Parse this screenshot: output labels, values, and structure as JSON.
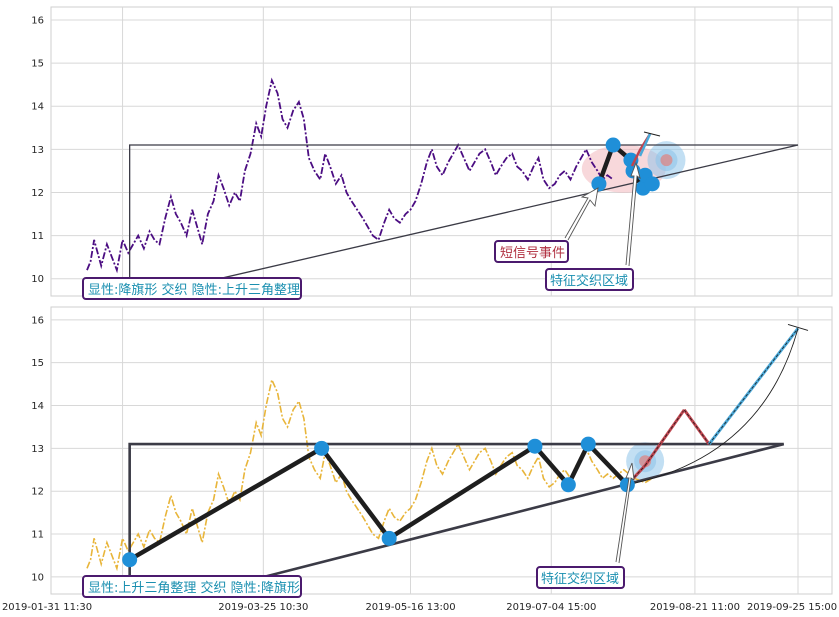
{
  "colors": {
    "price_top": "#4b0d82",
    "price_bottom": "#e8b53a",
    "pattern": "#1e1e1e",
    "channel": "#3b3b46",
    "node": "#1f8fd8",
    "zone_red": "#f2b8bd",
    "zone_blue": "#8fc4ea",
    "label_teal": "#1a8fb0",
    "label_red": "#b03040",
    "label_border": "#4b1a6e",
    "forecast_red": "#c0454f",
    "forecast_blue": "#4aa8d8"
  },
  "chart_data": [
    {
      "type": "line",
      "panel": "top",
      "ylim": [
        9.6,
        16.3
      ],
      "yticks": [
        10,
        11,
        12,
        13,
        14,
        15,
        16
      ],
      "xlim": [
        0,
        1000
      ],
      "xgrid": [
        50,
        248,
        455,
        653,
        855,
        1000
      ],
      "series": [
        {
          "style": "dashdot",
          "x": [
            0,
            5,
            10,
            15,
            20,
            28,
            35,
            42,
            50,
            58,
            65,
            72,
            80,
            88,
            95,
            102,
            110,
            118,
            125,
            132,
            140,
            148,
            155,
            162,
            170,
            178,
            185,
            192,
            200,
            208,
            215,
            222,
            230,
            238,
            245,
            252,
            260,
            268,
            275,
            282,
            290,
            298,
            305,
            312,
            320,
            328,
            335,
            342,
            350,
            358,
            365,
            372,
            380,
            388,
            395,
            402,
            410,
            418,
            425,
            432,
            440,
            448,
            455,
            462,
            470,
            478,
            485,
            492,
            500,
            508,
            515,
            522,
            530,
            538,
            545,
            552,
            560,
            568,
            575,
            582,
            590,
            598,
            605,
            612,
            620,
            628,
            635,
            642,
            650,
            658,
            665,
            672,
            680,
            688,
            695,
            702,
            710,
            718,
            725,
            732,
            740
          ],
          "y": [
            10.2,
            10.4,
            10.9,
            10.6,
            10.3,
            10.8,
            10.5,
            10.2,
            10.9,
            10.6,
            10.8,
            11.0,
            10.7,
            11.1,
            10.9,
            10.8,
            11.4,
            11.9,
            11.5,
            11.3,
            11.0,
            11.6,
            11.2,
            10.8,
            11.5,
            11.8,
            12.4,
            12.1,
            11.7,
            12.0,
            11.8,
            12.5,
            12.9,
            13.6,
            13.3,
            14.0,
            14.6,
            14.3,
            13.7,
            13.5,
            13.9,
            14.1,
            13.7,
            12.8,
            12.5,
            12.3,
            12.9,
            12.6,
            12.2,
            12.4,
            12.0,
            11.8,
            11.6,
            11.4,
            11.2,
            11.0,
            10.9,
            11.3,
            11.6,
            11.4,
            11.3,
            11.5,
            11.6,
            11.8,
            12.2,
            12.7,
            13.0,
            12.6,
            12.4,
            12.7,
            12.9,
            13.1,
            12.8,
            12.5,
            12.7,
            12.9,
            13.0,
            12.7,
            12.4,
            12.6,
            12.8,
            12.9,
            12.6,
            12.5,
            12.3,
            12.6,
            12.8,
            12.3,
            12.1,
            12.2,
            12.4,
            12.5,
            12.3,
            12.6,
            12.8,
            13.0,
            12.7,
            12.5,
            12.3,
            12.4,
            12.3
          ]
        }
      ],
      "triangle": {
        "left_x": 60,
        "top_y": 13.1,
        "apex": [
          1000,
          13.1
        ],
        "lower_start": [
          120,
          9.75
        ]
      },
      "nodes": [
        {
          "x": 720,
          "y": 12.2
        },
        {
          "x": 740,
          "y": 13.1
        },
        {
          "x": 765,
          "y": 12.75
        },
        {
          "x": 768,
          "y": 12.5
        },
        {
          "x": 782,
          "y": 12.1
        },
        {
          "x": 785,
          "y": 12.4
        },
        {
          "x": 795,
          "y": 12.2
        }
      ],
      "zones": [
        {
          "x": 755,
          "y": 12.55,
          "color": "red"
        },
        {
          "x": 815,
          "y": 12.75,
          "color": "blue"
        }
      ],
      "labels": [
        {
          "text": "显性:降旗形 交织 隐性:上升三角整理",
          "color": "teal"
        },
        {
          "text": "短信号事件",
          "color": "red"
        },
        {
          "text": "特征交织区域",
          "color": "teal"
        }
      ]
    },
    {
      "type": "line",
      "panel": "bottom",
      "ylim": [
        9.6,
        16.3
      ],
      "yticks": [
        10,
        11,
        12,
        13,
        14,
        15,
        16
      ],
      "xlim": [
        0,
        1000
      ],
      "xgrid": [
        50,
        248,
        455,
        653,
        855,
        1000
      ],
      "xtick_labels": [
        "2019-01-31 11:30",
        "2019-03-25 10:30",
        "2019-05-16 13:00",
        "2019-07-04 15:00",
        "2019-08-21 11:00",
        "2019-09-25 15:00"
      ],
      "series": [
        {
          "style": "dashdot",
          "x": [
            0,
            5,
            10,
            15,
            20,
            28,
            35,
            42,
            50,
            58,
            65,
            72,
            80,
            88,
            95,
            102,
            110,
            118,
            125,
            132,
            140,
            148,
            155,
            162,
            170,
            178,
            185,
            192,
            200,
            208,
            215,
            222,
            230,
            238,
            245,
            252,
            260,
            268,
            275,
            282,
            290,
            298,
            305,
            312,
            320,
            328,
            335,
            342,
            350,
            358,
            365,
            372,
            380,
            388,
            395,
            402,
            410,
            418,
            425,
            432,
            440,
            448,
            455,
            462,
            470,
            478,
            485,
            492,
            500,
            508,
            515,
            522,
            530,
            538,
            545,
            552,
            560,
            568,
            575,
            582,
            590,
            598,
            605,
            612,
            620,
            628,
            635,
            642,
            650,
            658,
            665,
            672,
            680,
            688,
            695,
            702,
            710,
            718,
            725,
            732,
            740,
            755,
            770,
            785,
            795
          ],
          "y": [
            10.2,
            10.4,
            10.9,
            10.6,
            10.3,
            10.8,
            10.5,
            10.2,
            10.9,
            10.6,
            10.8,
            11.0,
            10.7,
            11.1,
            10.9,
            10.8,
            11.4,
            11.9,
            11.5,
            11.3,
            11.0,
            11.6,
            11.2,
            10.8,
            11.5,
            11.8,
            12.4,
            12.1,
            11.7,
            12.0,
            11.8,
            12.5,
            12.9,
            13.6,
            13.3,
            14.0,
            14.6,
            14.3,
            13.7,
            13.5,
            13.9,
            14.1,
            13.7,
            12.8,
            12.5,
            12.3,
            12.9,
            12.6,
            12.2,
            12.4,
            12.0,
            11.8,
            11.6,
            11.4,
            11.2,
            11.0,
            10.9,
            11.3,
            11.6,
            11.4,
            11.3,
            11.5,
            11.6,
            11.8,
            12.2,
            12.7,
            13.0,
            12.6,
            12.4,
            12.7,
            12.9,
            13.1,
            12.8,
            12.5,
            12.7,
            12.9,
            13.0,
            12.7,
            12.4,
            12.6,
            12.8,
            12.9,
            12.6,
            12.5,
            12.3,
            12.6,
            12.8,
            12.3,
            12.1,
            12.2,
            12.4,
            12.5,
            12.3,
            12.6,
            12.8,
            13.0,
            12.7,
            12.5,
            12.3,
            12.4,
            12.3,
            12.5,
            12.3,
            12.2,
            12.3
          ]
        }
      ],
      "triangle": {
        "left_x": 60,
        "top_y": 13.1,
        "apex": [
          980,
          13.1
        ],
        "lower_start": [
          190,
          9.75
        ]
      },
      "nodes": [
        {
          "x": 60,
          "y": 10.4
        },
        {
          "x": 330,
          "y": 13.0
        },
        {
          "x": 425,
          "y": 10.9
        },
        {
          "x": 630,
          "y": 13.05
        },
        {
          "x": 677,
          "y": 12.15
        },
        {
          "x": 705,
          "y": 13.1
        },
        {
          "x": 760,
          "y": 12.15
        }
      ],
      "zones": [
        {
          "x": 785,
          "y": 12.7,
          "color": "blue"
        }
      ],
      "forecast": [
        {
          "x": 760,
          "y": 12.15
        },
        {
          "x": 785,
          "y": 12.6
        },
        {
          "x": 840,
          "y": 13.9
        },
        {
          "x": 875,
          "y": 13.1
        },
        {
          "x": 1000,
          "y": 15.8
        }
      ],
      "labels": [
        {
          "text": "显性:上升三角整理 交织 隐性:降旗形",
          "color": "teal"
        },
        {
          "text": "特征交织区域",
          "color": "teal"
        }
      ]
    }
  ]
}
